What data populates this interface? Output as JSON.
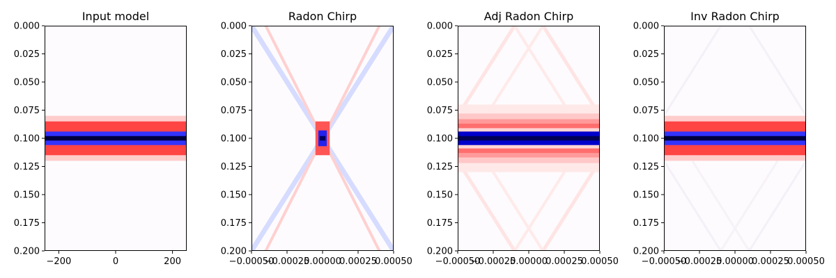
{
  "chart_data": [
    {
      "type": "heatmap",
      "title": "Input model",
      "colormap": "seismic_r",
      "xlim": [
        -250,
        250
      ],
      "ylim": [
        0.2,
        0.0
      ],
      "x_ticks": [
        -200,
        0,
        200
      ],
      "x_tick_labels": [
        "−200",
        "0",
        "200"
      ],
      "y_ticks": [
        0.0,
        0.025,
        0.05,
        0.075,
        0.1,
        0.125,
        0.15,
        0.175,
        0.2
      ],
      "y_tick_labels": [
        "0.000",
        "0.025",
        "0.050",
        "0.075",
        "0.100",
        "0.125",
        "0.150",
        "0.175",
        "0.200"
      ],
      "bands": [
        {
          "y0": 0.08,
          "y1": 0.12,
          "color": "#ffcccc"
        },
        {
          "y0": 0.085,
          "y1": 0.115,
          "color": "#ff4444"
        },
        {
          "y0": 0.094,
          "y1": 0.106,
          "color": "#3333ff"
        },
        {
          "y0": 0.098,
          "y1": 0.102,
          "color": "#000040"
        }
      ],
      "lines": []
    },
    {
      "type": "heatmap",
      "title": "Radon Chirp",
      "colormap": "seismic_r",
      "xlim": [
        -0.0005,
        0.0005
      ],
      "ylim": [
        0.2,
        0.0
      ],
      "x_ticks": [
        -0.0005,
        -0.00025,
        0.0,
        0.00025,
        0.0005
      ],
      "x_tick_labels": [
        "−0.00050",
        "−0.00025",
        "0.00000",
        "0.00025",
        "0.00050"
      ],
      "y_ticks": [
        0.0,
        0.025,
        0.05,
        0.075,
        0.1,
        0.125,
        0.15,
        0.175,
        0.2
      ],
      "y_tick_labels": [
        "0.000",
        "0.025",
        "0.050",
        "0.075",
        "0.100",
        "0.125",
        "0.150",
        "0.175",
        "0.200"
      ],
      "bands": [],
      "lines": [
        {
          "x0": -0.0005,
          "y0": 0.2,
          "x1": 0.0,
          "y1": 0.1,
          "color": "#d6dcff",
          "width": 7
        },
        {
          "x0": 0.0005,
          "y0": 0.2,
          "x1": 0.0,
          "y1": 0.1,
          "color": "#d6dcff",
          "width": 7
        },
        {
          "x0": -0.0005,
          "y0": 0.0,
          "x1": 0.0,
          "y1": 0.1,
          "color": "#d6dcff",
          "width": 7
        },
        {
          "x0": 0.0005,
          "y0": 0.0,
          "x1": 0.0,
          "y1": 0.1,
          "color": "#d6dcff",
          "width": 7
        },
        {
          "x0": -0.0004,
          "y0": 0.2,
          "x1": 0.0,
          "y1": 0.1,
          "color": "#ffd0d0",
          "width": 4
        },
        {
          "x0": 0.0004,
          "y0": 0.2,
          "x1": 0.0,
          "y1": 0.1,
          "color": "#ffd0d0",
          "width": 4
        },
        {
          "x0": -0.0004,
          "y0": 0.0,
          "x1": 0.0,
          "y1": 0.1,
          "color": "#ffd0d0",
          "width": 4
        },
        {
          "x0": 0.0004,
          "y0": 0.0,
          "x1": 0.0,
          "y1": 0.1,
          "color": "#ffd0d0",
          "width": 4
        }
      ],
      "blobs": [
        {
          "x0": -5e-05,
          "x1": 5e-05,
          "y0": 0.085,
          "y1": 0.115,
          "color": "#ff5555"
        },
        {
          "x0": -3e-05,
          "x1": 3e-05,
          "y0": 0.093,
          "y1": 0.107,
          "color": "#2222ee"
        },
        {
          "x0": -2e-05,
          "x1": 2e-05,
          "y0": 0.098,
          "y1": 0.102,
          "color": "#000060"
        }
      ]
    },
    {
      "type": "heatmap",
      "title": "Adj Radon Chirp",
      "colormap": "seismic_r",
      "xlim": [
        -0.0005,
        0.0005
      ],
      "ylim": [
        0.2,
        0.0
      ],
      "x_ticks": [
        -0.0005,
        -0.00025,
        0.0,
        0.00025,
        0.0005
      ],
      "x_tick_labels": [
        "−0.00050",
        "−0.00025",
        "0.00000",
        "0.00025",
        "0.00050"
      ],
      "y_ticks": [
        0.0,
        0.025,
        0.05,
        0.075,
        0.1,
        0.125,
        0.15,
        0.175,
        0.2
      ],
      "y_tick_labels": [
        "0.000",
        "0.025",
        "0.050",
        "0.075",
        "0.100",
        "0.125",
        "0.150",
        "0.175",
        "0.200"
      ],
      "bands": [
        {
          "y0": 0.07,
          "y1": 0.13,
          "color": "#ffe8e8"
        },
        {
          "y0": 0.078,
          "y1": 0.122,
          "color": "#ffc8c8"
        },
        {
          "y0": 0.083,
          "y1": 0.117,
          "color": "#ff9a9a"
        },
        {
          "y0": 0.087,
          "y1": 0.113,
          "color": "#ff6e6e"
        },
        {
          "y0": 0.091,
          "y1": 0.109,
          "color": "#ffd4d4"
        },
        {
          "y0": 0.094,
          "y1": 0.106,
          "color": "#0000cc"
        },
        {
          "y0": 0.098,
          "y1": 0.102,
          "color": "#000055"
        }
      ],
      "lines": [
        {
          "x0": -0.0005,
          "y0": 0.12,
          "x1": -0.0001,
          "y1": 0.2,
          "color": "#ffe4e4",
          "width": 5
        },
        {
          "x0": 0.0005,
          "y0": 0.12,
          "x1": 0.0001,
          "y1": 0.2,
          "color": "#ffe4e4",
          "width": 5
        },
        {
          "x0": -0.0005,
          "y0": 0.08,
          "x1": -0.0001,
          "y1": 0.0,
          "color": "#ffe4e4",
          "width": 5
        },
        {
          "x0": 0.0005,
          "y0": 0.08,
          "x1": 0.0001,
          "y1": 0.0,
          "color": "#ffe4e4",
          "width": 5
        },
        {
          "x0": -0.0003,
          "y0": 0.12,
          "x1": 0.0001,
          "y1": 0.2,
          "color": "#ffeaea",
          "width": 4
        },
        {
          "x0": 0.0003,
          "y0": 0.12,
          "x1": -0.0001,
          "y1": 0.2,
          "color": "#ffeaea",
          "width": 4
        },
        {
          "x0": -0.0003,
          "y0": 0.08,
          "x1": 0.0001,
          "y1": 0.0,
          "color": "#ffeaea",
          "width": 4
        },
        {
          "x0": 0.0003,
          "y0": 0.08,
          "x1": -0.0001,
          "y1": 0.0,
          "color": "#ffeaea",
          "width": 4
        }
      ]
    },
    {
      "type": "heatmap",
      "title": "Inv Radon Chirp",
      "colormap": "seismic_r",
      "xlim": [
        -0.0005,
        0.0005
      ],
      "ylim": [
        0.2,
        0.0
      ],
      "x_ticks": [
        -0.0005,
        -0.00025,
        0.0,
        0.00025,
        0.0005
      ],
      "x_tick_labels": [
        "−0.00050",
        "−0.00025",
        "0.00000",
        "0.00025",
        "0.00050"
      ],
      "y_ticks": [
        0.0,
        0.025,
        0.05,
        0.075,
        0.1,
        0.125,
        0.15,
        0.175,
        0.2
      ],
      "y_tick_labels": [
        "0.000",
        "0.025",
        "0.050",
        "0.075",
        "0.100",
        "0.125",
        "0.150",
        "0.175",
        "0.200"
      ],
      "bands": [
        {
          "y0": 0.08,
          "y1": 0.12,
          "color": "#ffcccc"
        },
        {
          "y0": 0.085,
          "y1": 0.115,
          "color": "#ff4444"
        },
        {
          "y0": 0.094,
          "y1": 0.106,
          "color": "#3333ff"
        },
        {
          "y0": 0.098,
          "y1": 0.102,
          "color": "#000040"
        }
      ],
      "lines": [
        {
          "x0": -0.0005,
          "y0": 0.12,
          "x1": -0.0001,
          "y1": 0.2,
          "color": "#f4f0f8",
          "width": 3
        },
        {
          "x0": 0.0005,
          "y0": 0.12,
          "x1": 0.0001,
          "y1": 0.2,
          "color": "#f4f0f8",
          "width": 3
        },
        {
          "x0": -0.0005,
          "y0": 0.08,
          "x1": -0.0001,
          "y1": 0.0,
          "color": "#f4f0f8",
          "width": 3
        },
        {
          "x0": 0.0005,
          "y0": 0.08,
          "x1": 0.0001,
          "y1": 0.0,
          "color": "#f4f0f8",
          "width": 3
        },
        {
          "x0": -0.0003,
          "y0": 0.12,
          "x1": 0.0001,
          "y1": 0.2,
          "color": "#f6f2f8",
          "width": 3
        },
        {
          "x0": 0.0003,
          "y0": 0.12,
          "x1": -0.0001,
          "y1": 0.2,
          "color": "#f6f2f8",
          "width": 3
        }
      ]
    }
  ]
}
